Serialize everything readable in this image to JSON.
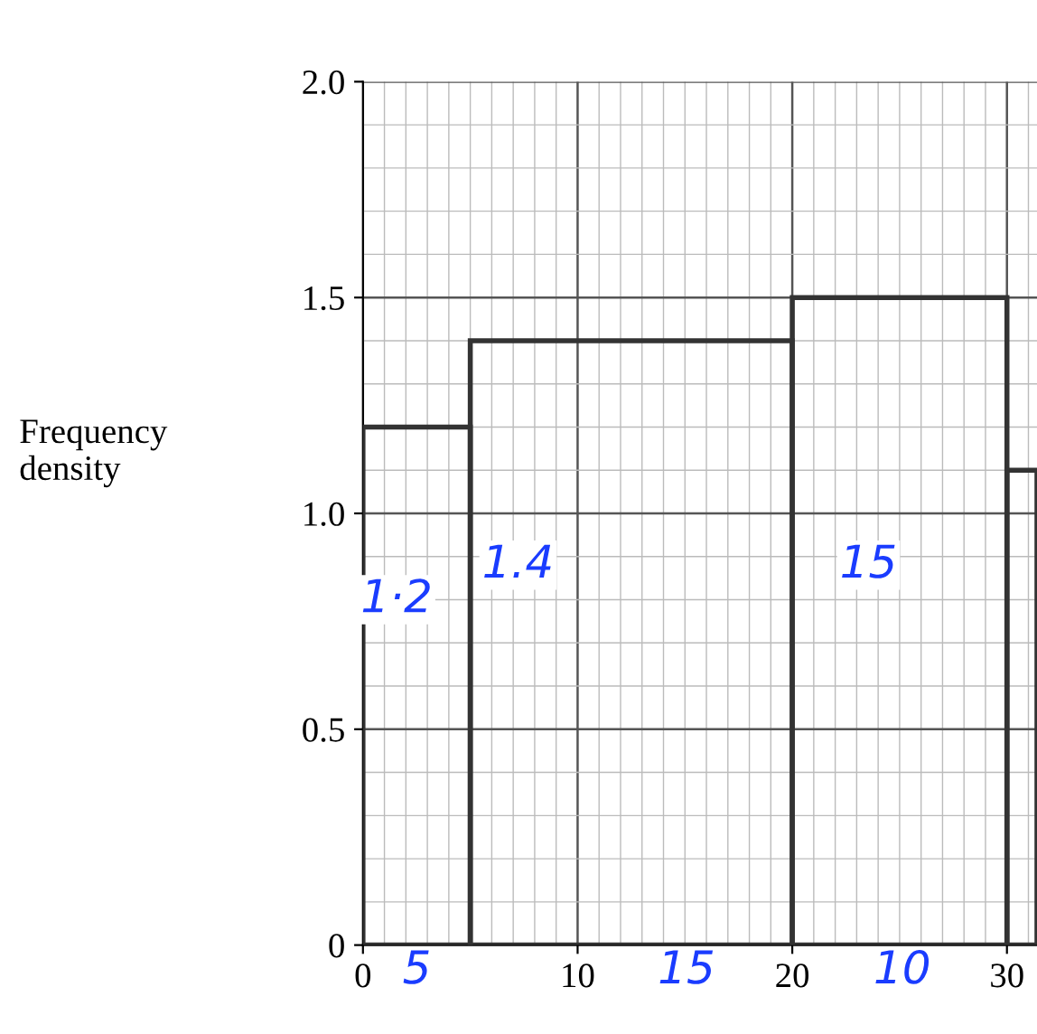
{
  "chart_data": {
    "type": "histogram",
    "ylabel": "Frequency\ndensity",
    "bins": [
      0,
      5,
      20,
      30,
      31.4
    ],
    "values": [
      1.2,
      1.4,
      1.5,
      1.1
    ],
    "color": "#333333",
    "xlim": [
      0,
      31.4
    ],
    "xticks": [
      0,
      10,
      20,
      30
    ],
    "ylim": [
      0,
      2.0
    ],
    "yticks": [
      0,
      0.5,
      {
        "value": 1.0,
        "label": "1.0"
      },
      1.5,
      {
        "value": 2.0,
        "label": "2.0"
      }
    ],
    "grid": true,
    "annotations": [
      "1·2",
      "1.4",
      "15",
      "5",
      "15",
      "10"
    ]
  }
}
